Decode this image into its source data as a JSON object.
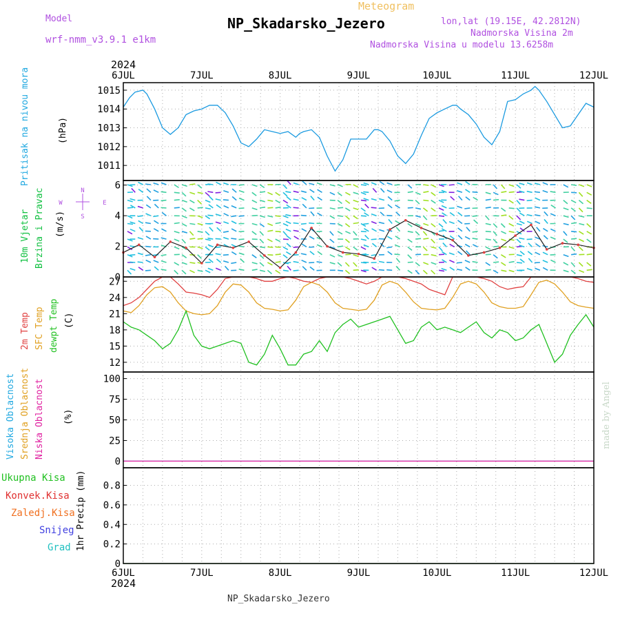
{
  "header": {
    "model_label": "Model",
    "model_value": "wrf-nmm_v3.9.1 e1km",
    "meteogram_label": "Meteogram",
    "station_title": "NP_Skadarsko_Jezero",
    "lonlat": "lon,lat (19.15E, 42.2812N)",
    "elevation": "Nadmorska Visina 2m",
    "model_elevation": "Nadmorska Visina u modelu 13.6258m",
    "footer_station": "NP_Skadarsko_Jezero",
    "watermark": "made by Angel"
  },
  "colors": {
    "pressure": "#1a9ae0",
    "wind_label": "#10c040",
    "temp2m": "#e04040",
    "sfc_temp": "#e0a020",
    "dewpt": "#20c020",
    "cloud_high": "#20a8e0",
    "cloud_mid": "#e0a020",
    "cloud_low": "#e020a0",
    "purple": "#b050e0",
    "precip_total": "#20c020",
    "precip_conv": "#e03030",
    "precip_frz": "#f07020",
    "precip_snow": "#4040e0",
    "precip_grad": "#20c0c0"
  },
  "chart_data": [
    {
      "type": "line",
      "panel": "pressure",
      "ylabel_lines": [
        "Pritisak na nivou mora",
        "(hPa)"
      ],
      "x_ticks": [
        "6JUL",
        "7JUL",
        "8JUL",
        "9JUL",
        "10JUL",
        "11JUL",
        "12JUL"
      ],
      "year_label": "2024",
      "ylim": [
        1010.2,
        1015.4
      ],
      "yticks": [
        1011,
        1012,
        1013,
        1014,
        1015
      ],
      "grid": true,
      "series": [
        {
          "color_key": "pressure",
          "x": [
            0,
            0.08,
            0.15,
            0.25,
            0.3,
            0.4,
            0.5,
            0.6,
            0.7,
            0.8,
            0.9,
            1.0,
            1.1,
            1.2,
            1.25,
            1.3,
            1.4,
            1.5,
            1.6,
            1.7,
            1.8,
            1.9,
            2.0,
            2.1,
            2.2,
            2.25,
            2.3,
            2.4,
            2.5,
            2.6,
            2.7,
            2.8,
            2.9,
            3.0,
            3.1,
            3.2,
            3.25,
            3.3,
            3.4,
            3.5,
            3.6,
            3.7,
            3.8,
            3.9,
            4.0,
            4.1,
            4.2,
            4.25,
            4.3,
            4.4,
            4.5,
            4.6,
            4.7,
            4.8,
            4.9,
            5.0,
            5.1,
            5.2,
            5.25,
            5.3,
            5.4,
            5.5,
            5.6,
            5.7,
            5.8,
            5.9,
            6.0
          ],
          "y": [
            1014.1,
            1014.6,
            1014.9,
            1015.0,
            1014.8,
            1014.0,
            1013.0,
            1012.65,
            1013.0,
            1013.7,
            1013.9,
            1014.0,
            1014.2,
            1014.2,
            1014.0,
            1013.8,
            1013.1,
            1012.2,
            1012.0,
            1012.4,
            1012.9,
            1012.8,
            1012.7,
            1012.8,
            1012.5,
            1012.7,
            1012.8,
            1012.9,
            1012.5,
            1011.5,
            1010.7,
            1011.3,
            1012.4,
            1012.4,
            1012.4,
            1012.9,
            1012.9,
            1012.8,
            1012.3,
            1011.5,
            1011.1,
            1011.6,
            1012.6,
            1013.5,
            1013.8,
            1014.0,
            1014.2,
            1014.2,
            1014.0,
            1013.7,
            1013.2,
            1012.5,
            1012.1,
            1012.8,
            1014.4,
            1014.5,
            1014.8,
            1015.0,
            1015.2,
            1015.0,
            1014.4,
            1013.7,
            1013.0,
            1013.1,
            1013.7,
            1014.3,
            1014.1
          ]
        }
      ]
    },
    {
      "type": "scatter",
      "panel": "wind",
      "ylabel_lines": [
        "10m Vjetar",
        "Brzina i Pravac",
        "(m/s)"
      ],
      "compass": {
        "n": "N",
        "s": "S",
        "w": "W",
        "e": "E"
      },
      "ylim": [
        0,
        6.3
      ],
      "yticks": [
        0,
        2,
        4,
        6
      ],
      "grid": true,
      "series": [
        {
          "name": "speed",
          "x": [
            0,
            0.2,
            0.4,
            0.6,
            0.8,
            1.0,
            1.2,
            1.4,
            1.6,
            1.8,
            2.0,
            2.2,
            2.4,
            2.6,
            2.8,
            3.0,
            3.2,
            3.4,
            3.6,
            3.8,
            4.0,
            4.2,
            4.4,
            4.6,
            4.8,
            5.0,
            5.2,
            5.4,
            5.6,
            5.8,
            6.0
          ],
          "y": [
            1.6,
            2.1,
            1.3,
            2.3,
            1.9,
            0.9,
            2.1,
            1.9,
            2.3,
            1.4,
            0.6,
            1.6,
            3.2,
            2.0,
            1.6,
            1.5,
            1.2,
            3.1,
            3.7,
            3.2,
            2.8,
            2.4,
            1.4,
            1.6,
            1.9,
            2.7,
            3.4,
            1.8,
            2.2,
            2.1,
            1.9
          ]
        }
      ]
    },
    {
      "type": "line",
      "panel": "temperature",
      "ylabel_lines": [
        "2m Temp",
        "SFC Temp",
        "dewpt Temp",
        "(C)"
      ],
      "ylim": [
        10.2,
        27.8
      ],
      "yticks": [
        12,
        15,
        18,
        21,
        24,
        27
      ],
      "grid": true,
      "series": [
        {
          "color_key": "temp2m",
          "x": [
            0,
            0.1,
            0.2,
            0.3,
            0.4,
            0.5,
            0.6,
            0.7,
            0.8,
            0.9,
            1.0,
            1.1,
            1.2,
            1.3,
            1.4,
            1.5,
            1.6,
            1.7,
            1.8,
            1.9,
            2.0,
            2.1,
            2.2,
            2.3,
            2.4,
            2.5,
            2.6,
            2.7,
            2.8,
            2.9,
            3.0,
            3.1,
            3.2,
            3.3,
            3.4,
            3.5,
            3.6,
            3.7,
            3.8,
            3.9,
            4.0,
            4.1,
            4.2,
            4.3,
            4.4,
            4.5,
            4.6,
            4.7,
            4.8,
            4.9,
            5.0,
            5.1,
            5.2,
            5.3,
            5.4,
            5.5,
            5.6,
            5.7,
            5.8,
            5.9,
            6.0
          ],
          "y": [
            22.5,
            23.0,
            24.0,
            25.5,
            27.0,
            28.0,
            28.0,
            26.5,
            25.0,
            24.8,
            24.5,
            24.0,
            25.5,
            27.5,
            28,
            28,
            28,
            27.5,
            27.0,
            27.0,
            27.5,
            28.5,
            27.5,
            27.0,
            26.8,
            27.5,
            28,
            28,
            28,
            27.5,
            27.0,
            26.5,
            27.0,
            28,
            28,
            28,
            27.5,
            27.0,
            26.5,
            25.5,
            25.0,
            24.5,
            28,
            28,
            28,
            28,
            27.5,
            27.0,
            26.0,
            25.5,
            25.8,
            26.0,
            28,
            28,
            28,
            28,
            28,
            28,
            27.5,
            27.0,
            26.8
          ]
        },
        {
          "color_key": "sfc_temp",
          "x": [
            0,
            0.1,
            0.2,
            0.3,
            0.4,
            0.5,
            0.6,
            0.7,
            0.8,
            0.9,
            1.0,
            1.1,
            1.2,
            1.3,
            1.4,
            1.5,
            1.6,
            1.7,
            1.8,
            1.9,
            2.0,
            2.1,
            2.2,
            2.3,
            2.4,
            2.5,
            2.6,
            2.7,
            2.8,
            2.9,
            3.0,
            3.1,
            3.2,
            3.3,
            3.4,
            3.5,
            3.6,
            3.7,
            3.8,
            3.9,
            4.0,
            4.1,
            4.2,
            4.3,
            4.4,
            4.5,
            4.6,
            4.7,
            4.8,
            4.9,
            5.0,
            5.1,
            5.2,
            5.3,
            5.4,
            5.5,
            5.6,
            5.7,
            5.8,
            5.9,
            6.0
          ],
          "y": [
            21.5,
            21.2,
            22.5,
            24.5,
            25.8,
            26.0,
            25.0,
            23.0,
            21.5,
            21.0,
            20.8,
            21.0,
            22.5,
            25.0,
            26.5,
            26.3,
            25.0,
            23.0,
            22.0,
            21.8,
            21.5,
            21.7,
            23.5,
            26.0,
            26.8,
            26.3,
            25.0,
            23.0,
            22.0,
            21.8,
            21.6,
            21.8,
            23.5,
            26.3,
            27.0,
            26.5,
            25.0,
            23.2,
            22.0,
            21.8,
            21.7,
            22.0,
            24.0,
            26.5,
            27.0,
            26.5,
            25.0,
            23.0,
            22.3,
            22.0,
            22.0,
            22.3,
            24.5,
            26.8,
            27.2,
            26.5,
            25.0,
            23.2,
            22.5,
            22.2,
            22.0
          ]
        },
        {
          "color_key": "dewpt",
          "x": [
            0,
            0.1,
            0.2,
            0.3,
            0.4,
            0.5,
            0.6,
            0.7,
            0.8,
            0.9,
            1.0,
            1.1,
            1.2,
            1.3,
            1.4,
            1.5,
            1.6,
            1.7,
            1.8,
            1.9,
            2.0,
            2.1,
            2.2,
            2.3,
            2.4,
            2.5,
            2.6,
            2.7,
            2.8,
            2.9,
            3.0,
            3.1,
            3.2,
            3.3,
            3.4,
            3.5,
            3.6,
            3.7,
            3.8,
            3.9,
            4.0,
            4.1,
            4.2,
            4.3,
            4.4,
            4.5,
            4.6,
            4.7,
            4.8,
            4.9,
            5.0,
            5.1,
            5.2,
            5.3,
            5.4,
            5.5,
            5.6,
            5.7,
            5.8,
            5.9,
            6.0
          ],
          "y": [
            19.5,
            18.5,
            18.0,
            17.0,
            16.0,
            14.5,
            15.5,
            18.0,
            21.5,
            17.0,
            15.0,
            14.5,
            15.0,
            15.5,
            16.0,
            15.5,
            12.0,
            11.5,
            13.5,
            17.0,
            14.5,
            11.5,
            11.5,
            13.5,
            14.0,
            16.0,
            14.0,
            17.5,
            19.0,
            20.0,
            18.5,
            19.0,
            19.5,
            20.0,
            20.5,
            18.0,
            15.5,
            16.0,
            18.5,
            19.5,
            18.0,
            18.5,
            18.0,
            17.5,
            18.5,
            19.5,
            17.5,
            16.5,
            18.0,
            17.5,
            16.0,
            16.5,
            18.0,
            19.0,
            15.5,
            12.0,
            13.5,
            17.0,
            19.0,
            20.8,
            18.5
          ]
        }
      ]
    },
    {
      "type": "line",
      "panel": "cloud",
      "ylabel_lines": [
        "Visoka Oblacnost",
        "Srednja Oblacnost",
        "Niska Oblacnost",
        "(%)"
      ],
      "ylim": [
        -8,
        108
      ],
      "yticks": [
        0,
        25,
        50,
        75,
        100
      ],
      "grid": true,
      "series": [
        {
          "color_key": "cloud_high",
          "x": [
            0,
            6
          ],
          "y": [
            0,
            0
          ]
        },
        {
          "color_key": "cloud_low",
          "x": [
            0,
            6
          ],
          "y": [
            0,
            0
          ]
        }
      ]
    },
    {
      "type": "line",
      "panel": "precip",
      "ylabel_lines": [
        "1hr Precip (mm)"
      ],
      "legend_labels": [
        "Ukupna Kisa",
        "Konvek.Kisa",
        "Zaledj.Kisa",
        "Snijeg",
        "Grad"
      ],
      "ylim": [
        0,
        0.98
      ],
      "yticks": [
        0,
        0.2,
        0.4,
        0.6,
        0.8
      ],
      "ytick_labels": [
        "0",
        "0.2",
        "0.4",
        "0.6",
        "0.8"
      ],
      "grid": true,
      "series": [
        {
          "color_key": "precip_total",
          "x": [
            0,
            6
          ],
          "y": [
            0,
            0
          ]
        }
      ]
    }
  ]
}
